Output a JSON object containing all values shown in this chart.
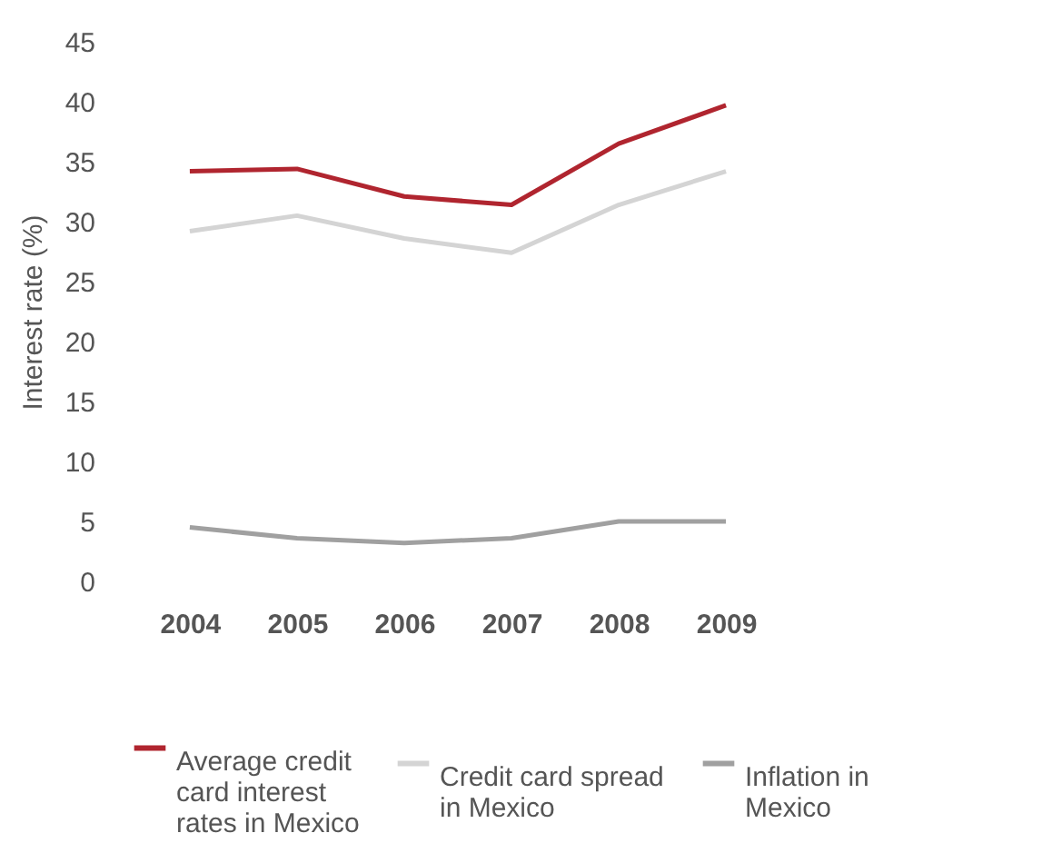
{
  "chart_data": {
    "type": "line",
    "ylabel": "Interest rate (%)",
    "categories": [
      "2004",
      "2005",
      "2006",
      "2007",
      "2008",
      "2009"
    ],
    "series": [
      {
        "name": "Average credit card interest rates in Mexico",
        "color": "#b0252f",
        "values": [
          34.2,
          34.4,
          32.1,
          31.4,
          36.5,
          39.7
        ]
      },
      {
        "name": "Credit card spread in Mexico",
        "color": "#d4d4d4",
        "values": [
          29.2,
          30.5,
          28.6,
          27.4,
          31.4,
          34.2
        ]
      },
      {
        "name": "Inflation in Mexico",
        "color": "#a0a0a0",
        "values": [
          4.5,
          3.6,
          3.2,
          3.6,
          5.0,
          5.0
        ]
      }
    ],
    "ylim": [
      0,
      45
    ],
    "yticks": [
      0,
      5,
      10,
      15,
      20,
      25,
      30,
      35,
      40,
      45
    ],
    "grid": false,
    "legend": "bottom",
    "marker": "none",
    "line_style": "solid"
  }
}
